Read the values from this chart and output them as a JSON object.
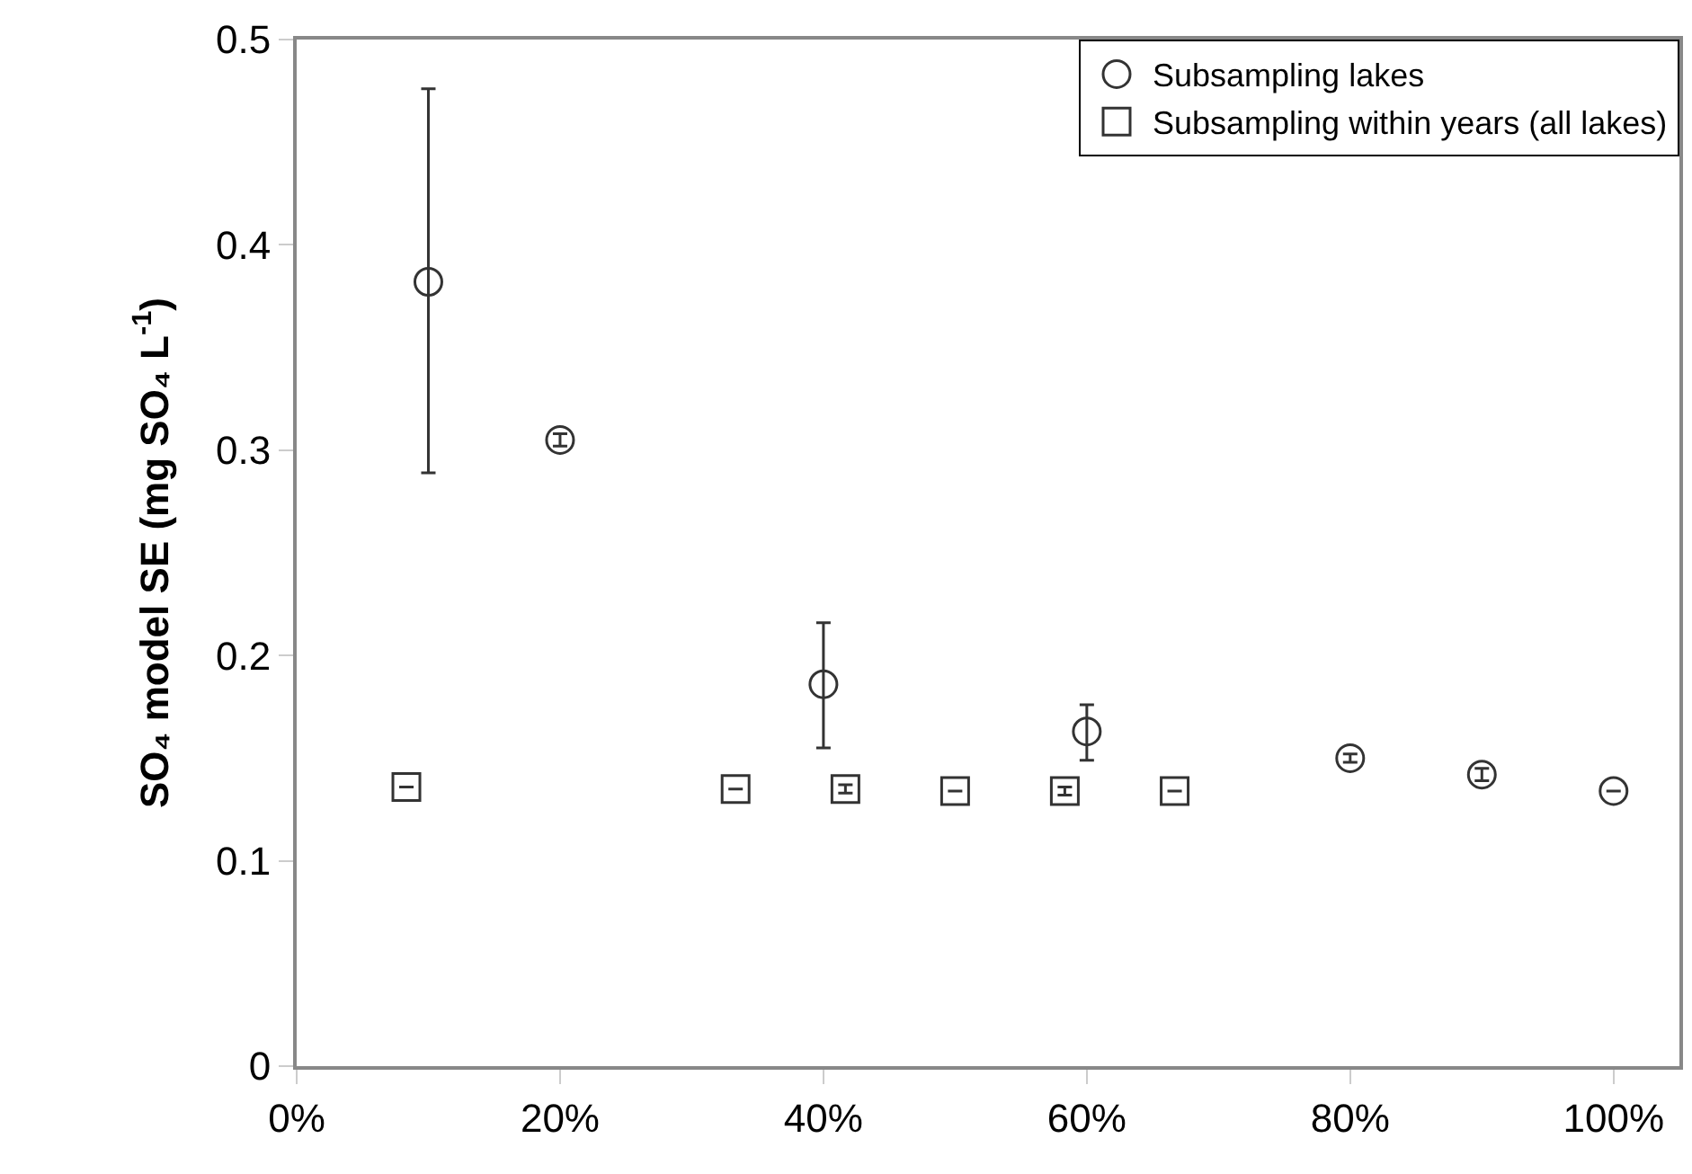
{
  "chart_data": {
    "type": "scatter",
    "ylabel": "SO₄ model SE (mg SO₄ L$^{-1}$)",
    "xlim": [
      0,
      105
    ],
    "xticks": [
      {
        "value": 0,
        "label": "0%"
      },
      {
        "value": 20,
        "label": "20%"
      },
      {
        "value": 40,
        "label": "40%"
      },
      {
        "value": 60,
        "label": "60%"
      },
      {
        "value": 80,
        "label": "80%"
      },
      {
        "value": 100,
        "label": "100%"
      }
    ],
    "ylim": [
      0,
      0.5
    ],
    "yticks": [
      0,
      0.1,
      0.2,
      0.3,
      0.4,
      0.5
    ],
    "grid": false,
    "legend": "top right",
    "series": [
      {
        "name": "Subsampling lakes",
        "color": "#333333",
        "marker": "circle",
        "x": [
          10,
          20,
          40,
          60,
          80,
          90,
          100
        ],
        "values": [
          0.382,
          0.305,
          0.186,
          0.163,
          0.15,
          0.142,
          0.134
        ],
        "errors": [
          [
            0.289,
            0.476
          ],
          0.003,
          [
            0.155,
            0.216
          ],
          [
            0.149,
            0.176
          ],
          0.002,
          0.003,
          null
        ]
      },
      {
        "name": "Subsampling within years (all lakes)",
        "color": "#333333",
        "marker": "square",
        "x": [
          8.33,
          33.33,
          41.67,
          50,
          58.33,
          66.67
        ],
        "values": [
          0.136,
          0.135,
          0.135,
          0.134,
          0.134,
          0.134
        ],
        "errors": [
          null,
          null,
          0.002,
          null,
          0.002,
          null
        ]
      }
    ]
  }
}
